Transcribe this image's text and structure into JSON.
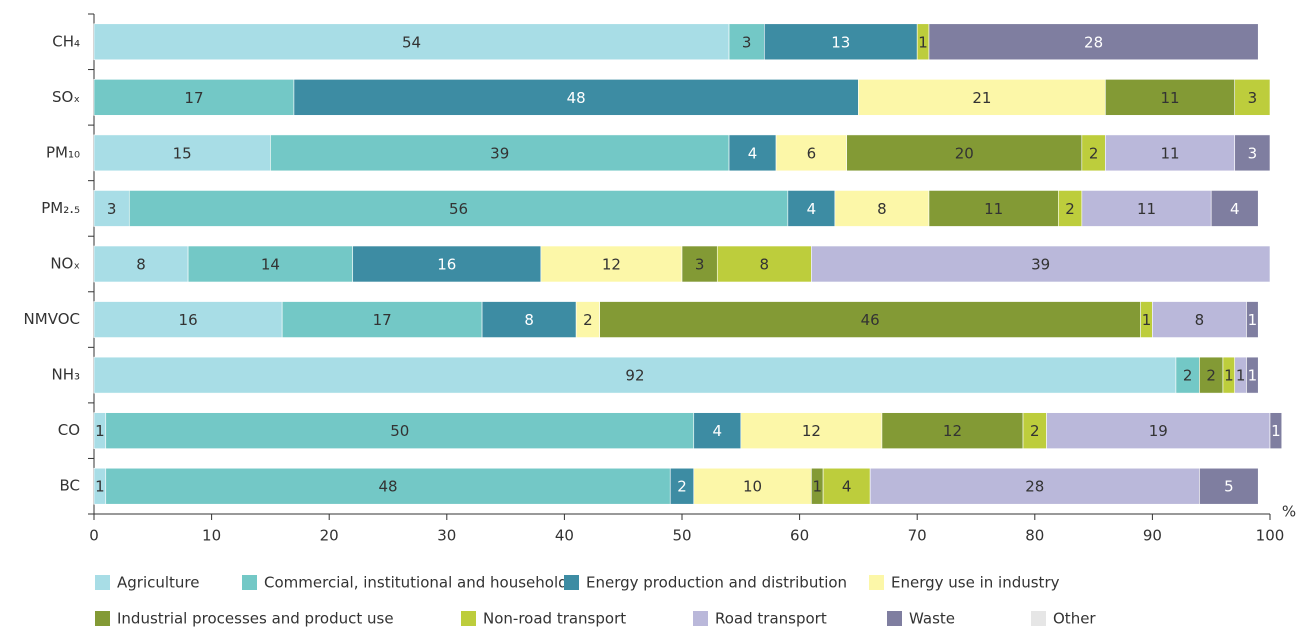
{
  "chart_data": {
    "type": "stacked-barh",
    "categories": [
      "CH₄",
      "SOₓ",
      "PM₁₀",
      "PM₂.₅",
      "NOₓ",
      "NMVOC",
      "NH₃",
      "CO",
      "BC"
    ],
    "series": [
      {
        "name": "Agriculture",
        "color": "#a8dde6",
        "values": [
          54,
          null,
          15,
          3,
          8,
          16,
          92,
          1,
          1
        ]
      },
      {
        "name": "Commercial, institutional and households",
        "color": "#73c8c6",
        "values": [
          3,
          17,
          39,
          56,
          14,
          17,
          2,
          50,
          48
        ]
      },
      {
        "name": "Energy production and distribution",
        "color": "#3d8ca3",
        "values": [
          13,
          48,
          4,
          4,
          16,
          8,
          null,
          4,
          2
        ]
      },
      {
        "name": "Energy use in industry",
        "color": "#fcf7a8",
        "values": [
          null,
          21,
          6,
          8,
          12,
          2,
          null,
          12,
          10
        ]
      },
      {
        "name": "Industrial processes and product use",
        "color": "#839a35",
        "values": [
          null,
          11,
          20,
          11,
          3,
          46,
          2,
          12,
          1
        ]
      },
      {
        "name": "Non-road transport",
        "color": "#bdcd3c",
        "values": [
          1,
          3,
          2,
          2,
          8,
          1,
          1,
          2,
          4
        ]
      },
      {
        "name": "Road transport",
        "color": "#bab8da",
        "values": [
          null,
          null,
          11,
          11,
          39,
          8,
          1,
          19,
          28
        ]
      },
      {
        "name": "Waste",
        "color": "#7f7ea0",
        "values": [
          28,
          null,
          3,
          4,
          null,
          1,
          1,
          1,
          5
        ]
      },
      {
        "name": "Other",
        "color": "#e6e6e6",
        "values": [
          null,
          null,
          null,
          null,
          null,
          null,
          null,
          null,
          null
        ]
      }
    ],
    "xlabel": "%",
    "xlim": [
      0,
      100
    ],
    "xticks": [
      0,
      10,
      20,
      30,
      40,
      50,
      60,
      70,
      80,
      90,
      100
    ]
  }
}
